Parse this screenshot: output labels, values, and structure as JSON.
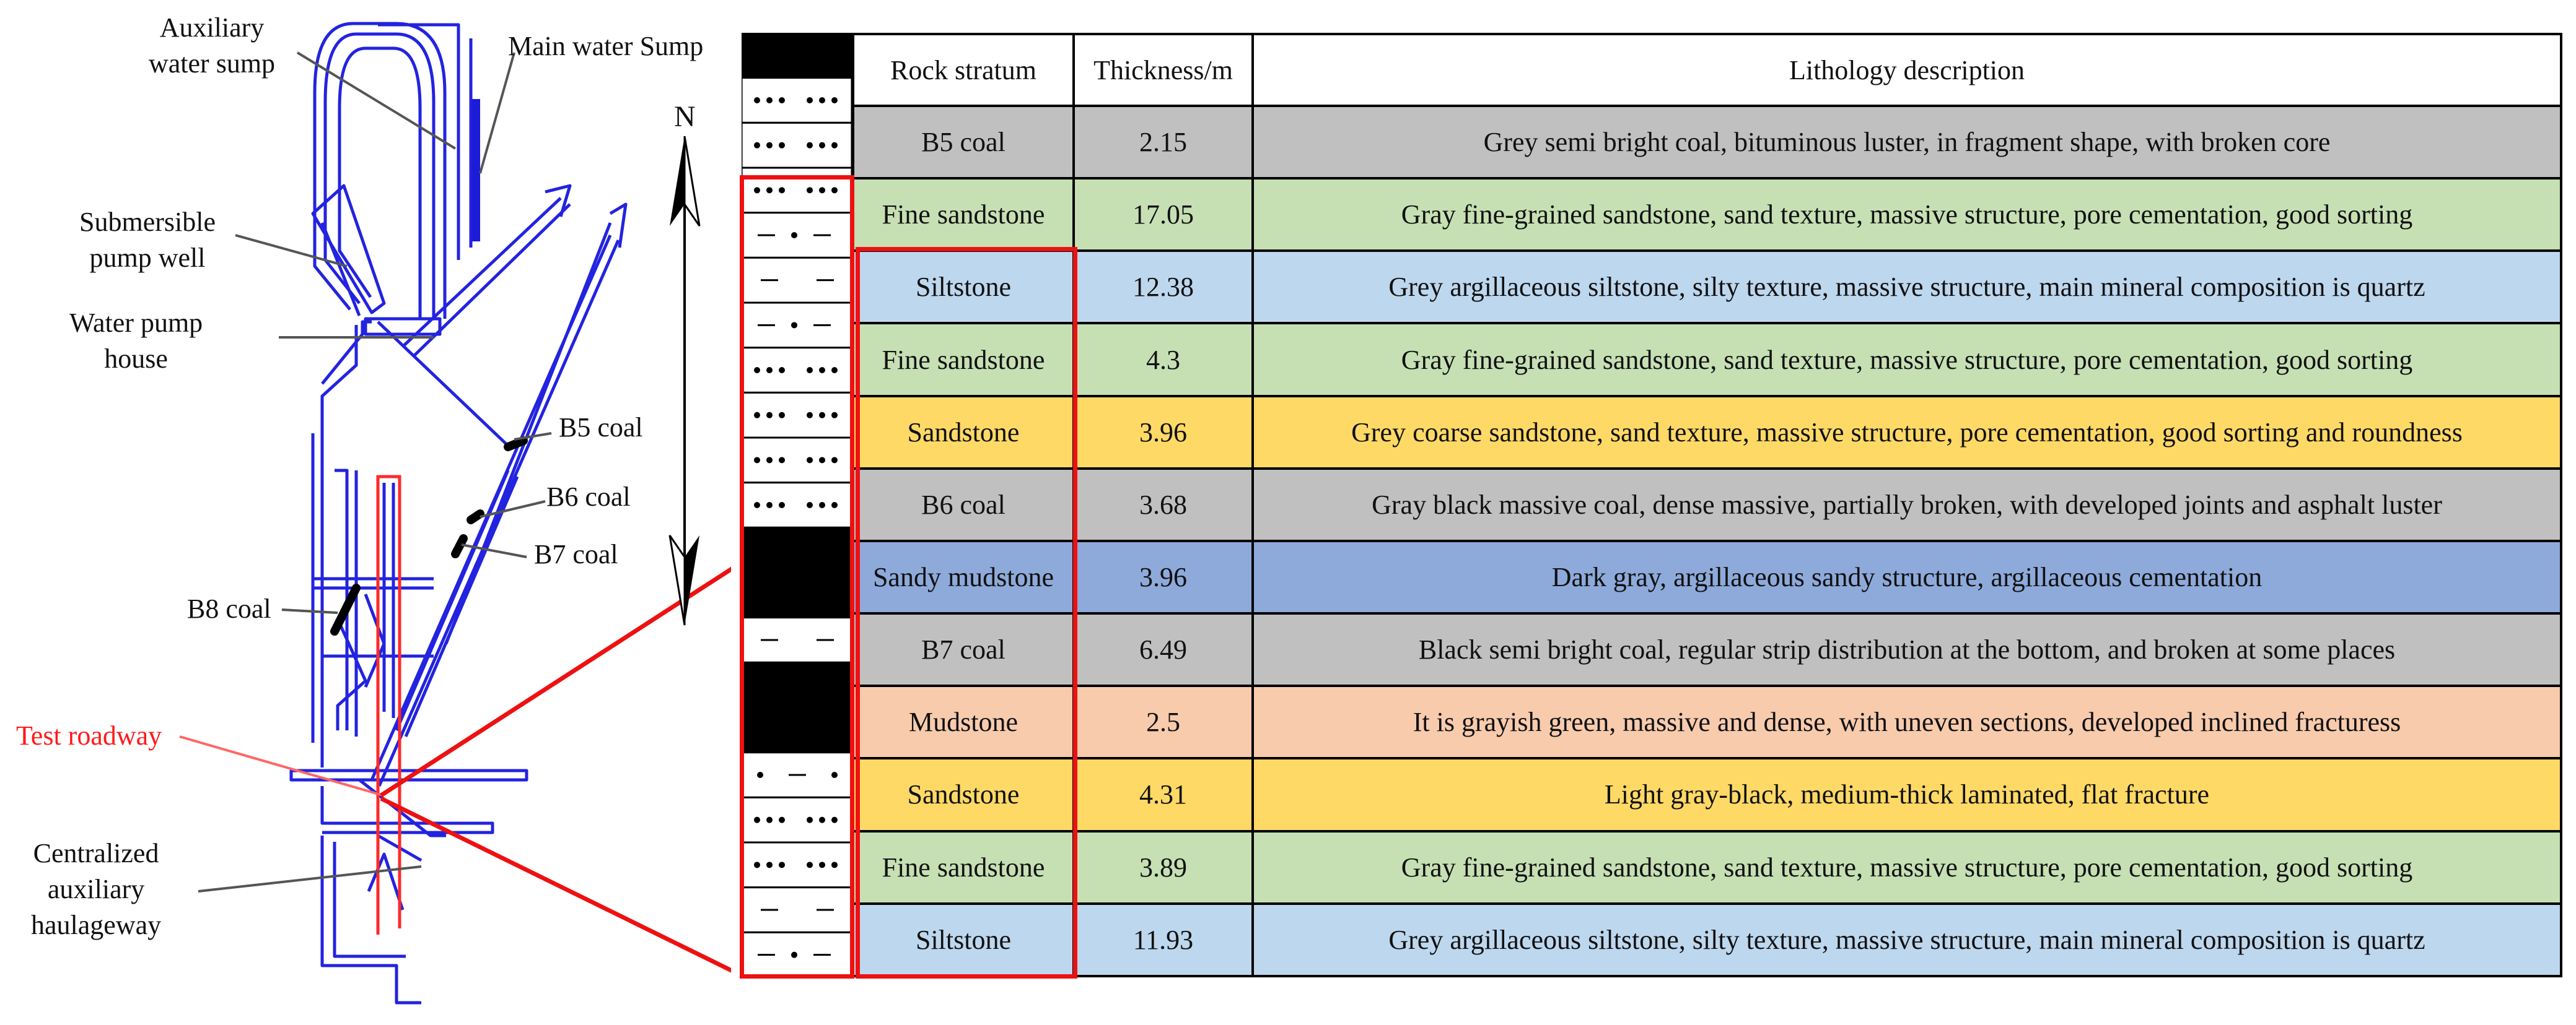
{
  "schematic": {
    "labels": {
      "auxiliary_sump": "Auxiliary\nwater sump",
      "main_sump": "Main water Sump",
      "submersible_pump_well": "Submersible\npump well",
      "water_pump_house": "Water pump\nhouse",
      "b5_coal": "B5 coal",
      "b6_coal": "B6 coal",
      "b7_coal": "B7 coal",
      "b8_coal": "B8 coal",
      "test_roadway": "Test roadway",
      "centralized_haulageway": "Centralized\nauxiliary\nhaulageway",
      "north": "N"
    },
    "colors": {
      "roadway": "#2323e0",
      "test_roadway": "#ff2a2a",
      "coal": "#000000",
      "callout_line": "#555555"
    }
  },
  "table": {
    "headers": [
      "Rock stratum",
      "Thickness/m",
      "Lithology description"
    ],
    "rows": [
      {
        "stratum": "B5 coal",
        "thickness": "2.15",
        "description": "Grey semi bright coal, bituminous luster, in fragment shape, with broken core",
        "color": "#c0c0c0"
      },
      {
        "stratum": "Fine sandstone",
        "thickness": "17.05",
        "description": "Gray fine-grained sandstone, sand texture, massive structure, pore cementation, good sorting",
        "color": "#c6e0b4"
      },
      {
        "stratum": "Siltstone",
        "thickness": "12.38",
        "description": "Grey argillaceous siltstone, silty texture, massive structure, main mineral composition is quartz",
        "color": "#bdd7ee"
      },
      {
        "stratum": "Fine sandstone",
        "thickness": "4.3",
        "description": "Gray fine-grained sandstone, sand texture, massive structure, pore cementation, good sorting",
        "color": "#c6e0b4"
      },
      {
        "stratum": "Sandstone",
        "thickness": "3.96",
        "description": "Grey coarse sandstone, sand texture, massive structure, pore cementation, good sorting and roundness",
        "color": "#ffd966"
      },
      {
        "stratum": "B6 coal",
        "thickness": "3.68",
        "description": "Gray black massive coal, dense massive, partially broken, with developed joints and asphalt luster",
        "color": "#c0c0c0"
      },
      {
        "stratum": "Sandy mudstone",
        "thickness": "3.96",
        "description": "Dark gray, argillaceous sandy structure, argillaceous cementation",
        "color": "#8eaadb"
      },
      {
        "stratum": "B7 coal",
        "thickness": "6.49",
        "description": "Black semi bright coal,  regular strip distribution at the bottom, and broken at some places",
        "color": "#c0c0c0"
      },
      {
        "stratum": "Mudstone",
        "thickness": "2.5",
        "description": "It is grayish green, massive and dense, with uneven sections, developed inclined fracturess",
        "color": "#f8cbad"
      },
      {
        "stratum": "Sandstone",
        "thickness": "4.31",
        "description": "Light gray-black, medium-thick laminated, flat fracture",
        "color": "#ffd966"
      },
      {
        "stratum": "Fine sandstone",
        "thickness": "3.89",
        "description": "Gray fine-grained sandstone, sand texture, massive structure, pore cementation, good sorting",
        "color": "#c6e0b4"
      },
      {
        "stratum": "Siltstone",
        "thickness": "11.93",
        "description": "Grey argillaceous siltstone, silty texture, massive structure, main mineral composition is quartz",
        "color": "#bdd7ee"
      }
    ]
  },
  "column_pattern": [
    "coal",
    "dots",
    "dots",
    "dots",
    "dash-dot",
    "dash",
    "dash-dot",
    "dots",
    "dots",
    "dots",
    "dots",
    "coal",
    "coal",
    "dash",
    "coal",
    "coal",
    "dot-dash",
    "dots",
    "dots",
    "dash",
    "dash-dot"
  ],
  "highlight_color": "#ee1111"
}
